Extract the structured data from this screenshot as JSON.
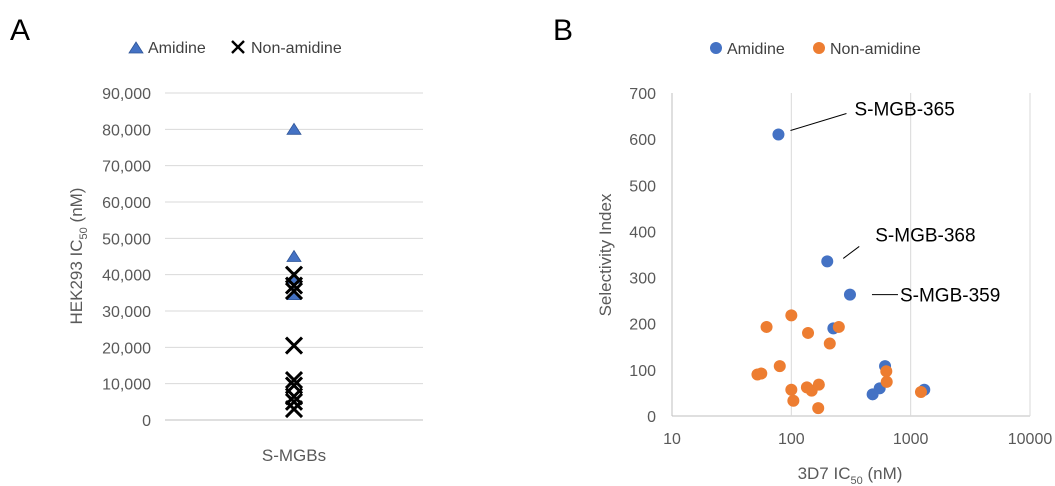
{
  "chart_data": [
    {
      "panel": "A",
      "type": "scatter",
      "legend": [
        "Amidine",
        "Non-amidine"
      ],
      "legend_position": "top",
      "xlabel": "S-MGBs",
      "ylabel": {
        "main": "HEK293 IC",
        "sub": "50",
        "unit": " (nM)"
      },
      "ylim": [
        0,
        90000
      ],
      "yticks": [
        "0",
        "10,000",
        "20,000",
        "30,000",
        "40,000",
        "50,000",
        "60,000",
        "70,000",
        "80,000",
        "90,000"
      ],
      "grid": "horizontal",
      "series": [
        {
          "name": "Amidine",
          "marker": "triangle",
          "color": "#4472c4",
          "values": [
            80000,
            45000,
            39000,
            34500
          ]
        },
        {
          "name": "Non-amidine",
          "marker": "x",
          "color": "#000000",
          "values": [
            40000,
            37000,
            35500,
            20500,
            11000,
            9500,
            6500,
            5000,
            3000
          ]
        }
      ]
    },
    {
      "panel": "B",
      "type": "scatter",
      "legend": [
        "Amidine",
        "Non-amidine"
      ],
      "legend_position": "top",
      "xlabel": {
        "main": "3D7 IC",
        "sub": "50",
        "unit": " (nM)"
      },
      "ylabel": "Selectivity Index",
      "xscale": "log",
      "xlim": [
        10,
        10000
      ],
      "xticks": [
        "10",
        "100",
        "1000",
        "10000"
      ],
      "ylim": [
        0,
        700
      ],
      "yticks": [
        "0",
        "100",
        "200",
        "300",
        "400",
        "500",
        "600",
        "700"
      ],
      "grid": "both",
      "series": [
        {
          "name": "Amidine",
          "color": "#4472c4",
          "points": [
            [
              78,
              610
            ],
            [
              200,
              335
            ],
            [
              310,
              263
            ],
            [
              225,
              190
            ],
            [
              610,
              108
            ],
            [
              550,
              60
            ],
            [
              480,
              47
            ],
            [
              1300,
              57
            ]
          ]
        },
        {
          "name": "Non-amidine",
          "color": "#ed7d31",
          "points": [
            [
              52,
              90
            ],
            [
              56,
              92
            ],
            [
              62,
              193
            ],
            [
              80,
              108
            ],
            [
              100,
              218
            ],
            [
              100,
              57
            ],
            [
              104,
              33
            ],
            [
              135,
              62
            ],
            [
              138,
              180
            ],
            [
              148,
              55
            ],
            [
              170,
              68
            ],
            [
              168,
              17
            ],
            [
              210,
              157
            ],
            [
              250,
              193
            ],
            [
              625,
              97
            ],
            [
              630,
              74
            ],
            [
              1220,
              52
            ]
          ]
        }
      ],
      "annotations": [
        {
          "text": "S-MGB-365",
          "x": 78,
          "y": 610
        },
        {
          "text": "S-MGB-368",
          "x": 200,
          "y": 335
        },
        {
          "text": "S-MGB-359",
          "x": 310,
          "y": 263
        }
      ]
    }
  ]
}
